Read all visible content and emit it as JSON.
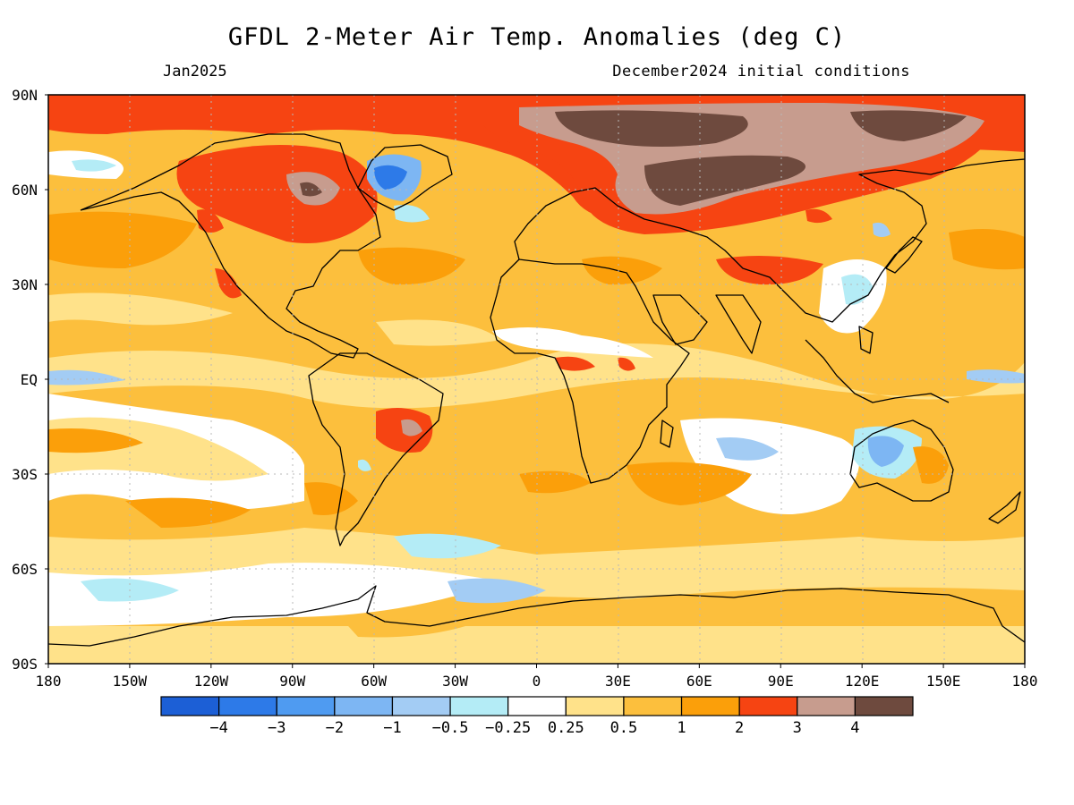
{
  "title": "GFDL 2-Meter Air Temp. Anomalies (deg C)",
  "valid_month": "Jan2025",
  "initial_conditions": "December2024 initial conditions",
  "lat_labels": [
    "90N",
    "60N",
    "30N",
    "EQ",
    "30S",
    "60S",
    "90S"
  ],
  "lon_labels": [
    "180",
    "150W",
    "120W",
    "90W",
    "60W",
    "30W",
    "0",
    "30E",
    "60E",
    "90E",
    "120E",
    "150E",
    "180"
  ],
  "legend": {
    "colors": [
      "#1c5fd6",
      "#2d7ae8",
      "#4f9bf1",
      "#7db6f3",
      "#a3ccf4",
      "#b4ecf6",
      "#ffffff",
      "#ffe28a",
      "#fcbf3d",
      "#fb9f0a",
      "#f64412",
      "#c79c8e",
      "#6e4a3e"
    ],
    "labels": [
      "−4",
      "−3",
      "−2",
      "−1",
      "−0.5",
      "−0.25",
      "0.25",
      "0.5",
      "1",
      "2",
      "3",
      "4"
    ]
  }
}
